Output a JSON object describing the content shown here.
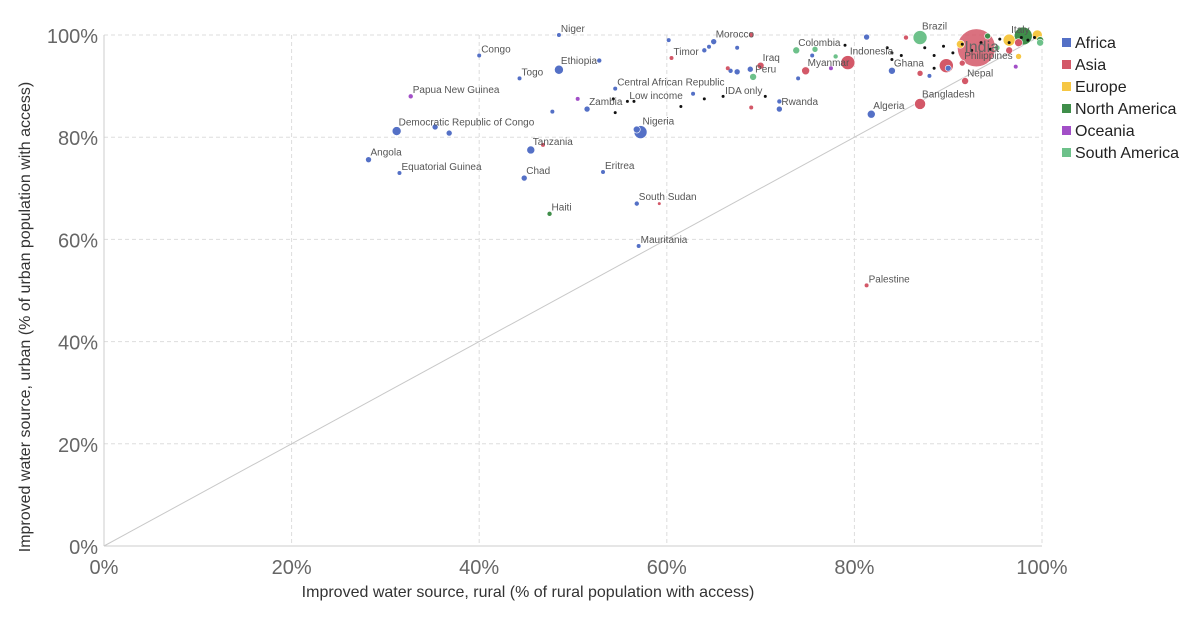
{
  "chart_data": {
    "type": "scatter",
    "title": "",
    "xlabel": "Improved water source, rural (% of rural population with access)",
    "ylabel": "Improved water source, urban (% of urban population with access)",
    "xlim": [
      0,
      100
    ],
    "ylim": [
      0,
      100
    ],
    "x_ticks": [
      "0%",
      "20%",
      "40%",
      "60%",
      "80%",
      "100%"
    ],
    "y_ticks": [
      "0%",
      "20%",
      "40%",
      "60%",
      "80%",
      "100%"
    ],
    "grid": true,
    "reference_line": "y = x",
    "legend_position": "right",
    "series": [
      {
        "name": "Africa",
        "color": "#5470c6",
        "points": [
          {
            "label": "Niger",
            "x": 48.5,
            "y": 100,
            "size": 4
          },
          {
            "label": "Congo",
            "x": 40,
            "y": 96,
            "size": 4
          },
          {
            "label": "Ethiopia",
            "x": 48.5,
            "y": 93.2,
            "size": 9
          },
          {
            "label": "Togo",
            "x": 44.3,
            "y": 91.5,
            "size": 4
          },
          {
            "label": "Morocco",
            "x": 65,
            "y": 98.7,
            "size": 6
          },
          {
            "label": "Central African Republic",
            "x": 54.5,
            "y": 89.5,
            "size": 4
          },
          {
            "label": "Zambia",
            "x": 51.5,
            "y": 85.5,
            "size": 6
          },
          {
            "label": "Democratic Republic of Congo",
            "x": 31.2,
            "y": 81.2,
            "size": 9
          },
          {
            "label": "Nigeria",
            "x": 57.2,
            "y": 81,
            "size": 13
          },
          {
            "label": "Tanzania",
            "x": 45.5,
            "y": 77.5,
            "size": 8
          },
          {
            "label": "Angola",
            "x": 28.2,
            "y": 75.6,
            "size": 6
          },
          {
            "label": "Equatorial Guinea",
            "x": 31.5,
            "y": 73,
            "size": 4
          },
          {
            "label": "Chad",
            "x": 44.8,
            "y": 72,
            "size": 6
          },
          {
            "label": "Eritrea",
            "x": 53.2,
            "y": 73.2,
            "size": 4
          },
          {
            "label": "South Sudan",
            "x": 56.8,
            "y": 67,
            "size": 5
          },
          {
            "label": "Mauritania",
            "x": 57,
            "y": 58.7,
            "size": 4
          },
          {
            "label": "Rwanda",
            "x": 72,
            "y": 85.5,
            "size": 6
          },
          {
            "label": "Algeria",
            "x": 81.8,
            "y": 84.5,
            "size": 8
          },
          {
            "label": "Ghana",
            "x": 84,
            "y": 93,
            "size": 7
          },
          {
            "label": "",
            "x": 35.3,
            "y": 82,
            "size": 6
          },
          {
            "label": "",
            "x": 36.8,
            "y": 80.8,
            "size": 6
          },
          {
            "label": "",
            "x": 47.8,
            "y": 85,
            "size": 4
          },
          {
            "label": "",
            "x": 52.8,
            "y": 95,
            "size": 5
          },
          {
            "label": "",
            "x": 56.8,
            "y": 81.5,
            "size": 7
          },
          {
            "label": "",
            "x": 60.2,
            "y": 99,
            "size": 4
          },
          {
            "label": "",
            "x": 64,
            "y": 97,
            "size": 5
          },
          {
            "label": "",
            "x": 64.5,
            "y": 97.7,
            "size": 4
          },
          {
            "label": "",
            "x": 67.5,
            "y": 97.5,
            "size": 4
          },
          {
            "label": "",
            "x": 66.8,
            "y": 93,
            "size": 5
          },
          {
            "label": "",
            "x": 67.5,
            "y": 92.8,
            "size": 6
          },
          {
            "label": "",
            "x": 68.9,
            "y": 93.3,
            "size": 6
          },
          {
            "label": "",
            "x": 62.8,
            "y": 88.5,
            "size": 4
          },
          {
            "label": "",
            "x": 72,
            "y": 87,
            "size": 5
          },
          {
            "label": "",
            "x": 74,
            "y": 91.5,
            "size": 4
          },
          {
            "label": "",
            "x": 75.5,
            "y": 96,
            "size": 4
          },
          {
            "label": "",
            "x": 81.3,
            "y": 99.6,
            "size": 6
          },
          {
            "label": "",
            "x": 88,
            "y": 92,
            "size": 4
          },
          {
            "label": "",
            "x": 90,
            "y": 93.5,
            "size": 6
          }
        ]
      },
      {
        "name": "Asia",
        "color": "#d35868",
        "points": [
          {
            "label": "Timor",
            "x": 60.5,
            "y": 95.5,
            "size": 4
          },
          {
            "label": "Iraq",
            "x": 70,
            "y": 94,
            "size": 7
          },
          {
            "label": "Myanmar",
            "x": 74.8,
            "y": 93,
            "size": 8
          },
          {
            "label": "Indonesia",
            "x": 79.3,
            "y": 94.6,
            "size": 14
          },
          {
            "label": "Bangladesh",
            "x": 87,
            "y": 86.5,
            "size": 11
          },
          {
            "label": "Nepal",
            "x": 91.8,
            "y": 91,
            "size": 7
          },
          {
            "label": "Palestine",
            "x": 81.3,
            "y": 51,
            "size": 4
          },
          {
            "label": "Philippines",
            "x": 91.5,
            "y": 94.5,
            "size": 6
          },
          {
            "label": "India",
            "x": 93,
            "y": 97.5,
            "size": 38
          },
          {
            "label": "",
            "x": 46.8,
            "y": 78.5,
            "size": 4
          },
          {
            "label": "",
            "x": 59.2,
            "y": 67,
            "size": 3
          },
          {
            "label": "",
            "x": 66.5,
            "y": 93.5,
            "size": 4
          },
          {
            "label": "",
            "x": 69,
            "y": 85.8,
            "size": 4
          },
          {
            "label": "",
            "x": 69,
            "y": 100,
            "size": 5
          },
          {
            "label": "",
            "x": 85.5,
            "y": 99.5,
            "size": 5
          },
          {
            "label": "",
            "x": 87,
            "y": 92.5,
            "size": 6
          },
          {
            "label": "",
            "x": 89.8,
            "y": 94,
            "size": 14
          },
          {
            "label": "",
            "x": 96.5,
            "y": 97,
            "size": 7
          },
          {
            "label": "",
            "x": 97.5,
            "y": 98.5,
            "size": 8
          }
        ]
      },
      {
        "name": "Europe",
        "color": "#f6c744",
        "points": [
          {
            "label": "",
            "x": 97.5,
            "y": 95.8,
            "size": 6
          },
          {
            "label": "Italy",
            "x": 96.5,
            "y": 99,
            "size": 12
          },
          {
            "label": "",
            "x": 99.5,
            "y": 100,
            "size": 10
          },
          {
            "label": "",
            "x": 91.3,
            "y": 98.2,
            "size": 8
          }
        ]
      },
      {
        "name": "North America",
        "color": "#3f8e4a",
        "points": [
          {
            "label": "Haiti",
            "x": 47.5,
            "y": 65,
            "size": 5
          },
          {
            "label": "",
            "x": 98,
            "y": 99.8,
            "size": 18
          },
          {
            "label": "",
            "x": 94.2,
            "y": 99.8,
            "size": 6
          },
          {
            "label": "",
            "x": 99.8,
            "y": 99,
            "size": 7
          }
        ]
      },
      {
        "name": "Oceania",
        "color": "#a24fc7",
        "points": [
          {
            "label": "Papua New Guinea",
            "x": 32.7,
            "y": 88,
            "size": 5
          },
          {
            "label": "",
            "x": 50.5,
            "y": 87.5,
            "size": 4
          },
          {
            "label": "",
            "x": 77.5,
            "y": 93.5,
            "size": 4
          },
          {
            "label": "",
            "x": 97.2,
            "y": 93.8,
            "size": 4
          }
        ]
      },
      {
        "name": "South America",
        "color": "#6dc18a",
        "points": [
          {
            "label": "Colombia",
            "x": 73.8,
            "y": 97,
            "size": 7
          },
          {
            "label": "Peru",
            "x": 69.2,
            "y": 91.8,
            "size": 7
          },
          {
            "label": "Brazil",
            "x": 87,
            "y": 99.5,
            "size": 14
          },
          {
            "label": "",
            "x": 75.8,
            "y": 97.2,
            "size": 6
          },
          {
            "label": "",
            "x": 78,
            "y": 95.8,
            "size": 5
          },
          {
            "label": "",
            "x": 95.2,
            "y": 97.5,
            "size": 6
          },
          {
            "label": "",
            "x": 99.8,
            "y": 98.5,
            "size": 7
          }
        ]
      },
      {
        "name": "",
        "color": "#111111",
        "points": [
          {
            "label": "Low income",
            "x": 55.8,
            "y": 87,
            "size": 3
          },
          {
            "label": "IDA only",
            "x": 66,
            "y": 88,
            "size": 3
          },
          {
            "label": "",
            "x": 54.3,
            "y": 87.5,
            "size": 3
          },
          {
            "label": "",
            "x": 56.5,
            "y": 87,
            "size": 3
          },
          {
            "label": "",
            "x": 54.5,
            "y": 84.8,
            "size": 3
          },
          {
            "label": "",
            "x": 61.5,
            "y": 86,
            "size": 3
          },
          {
            "label": "",
            "x": 64,
            "y": 87.5,
            "size": 3
          },
          {
            "label": "",
            "x": 70.5,
            "y": 88,
            "size": 3
          },
          {
            "label": "",
            "x": 79,
            "y": 98,
            "size": 3
          },
          {
            "label": "",
            "x": 83.5,
            "y": 97.5,
            "size": 3
          },
          {
            "label": "",
            "x": 84,
            "y": 96.5,
            "size": 3
          },
          {
            "label": "",
            "x": 85,
            "y": 96,
            "size": 3
          },
          {
            "label": "",
            "x": 87.5,
            "y": 97.5,
            "size": 3
          },
          {
            "label": "",
            "x": 88.5,
            "y": 96,
            "size": 3
          },
          {
            "label": "",
            "x": 89.5,
            "y": 97.8,
            "size": 3
          },
          {
            "label": "",
            "x": 90.5,
            "y": 96.5,
            "size": 3
          },
          {
            "label": "",
            "x": 91.5,
            "y": 98.2,
            "size": 3
          },
          {
            "label": "",
            "x": 92.5,
            "y": 97,
            "size": 3
          },
          {
            "label": "",
            "x": 93.5,
            "y": 98.5,
            "size": 3
          },
          {
            "label": "",
            "x": 94.5,
            "y": 97.2,
            "size": 3
          },
          {
            "label": "",
            "x": 95.5,
            "y": 99.2,
            "size": 3
          },
          {
            "label": "",
            "x": 96.5,
            "y": 98.5,
            "size": 3
          },
          {
            "label": "",
            "x": 97.8,
            "y": 99.5,
            "size": 3
          },
          {
            "label": "",
            "x": 98.5,
            "y": 99,
            "size": 3
          },
          {
            "label": "",
            "x": 99.2,
            "y": 99.5,
            "size": 3
          },
          {
            "label": "",
            "x": 88.5,
            "y": 93.5,
            "size": 3
          },
          {
            "label": "",
            "x": 84,
            "y": 95.2,
            "size": 3
          }
        ]
      }
    ]
  }
}
